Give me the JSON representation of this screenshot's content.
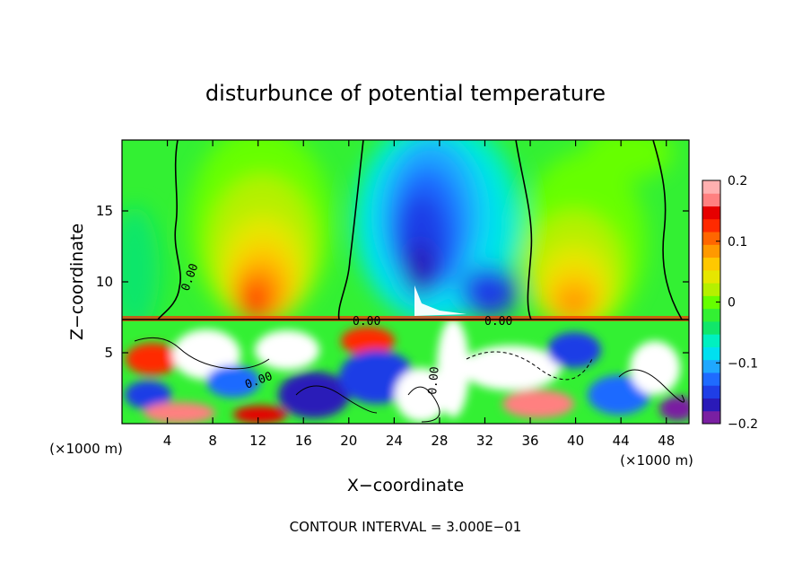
{
  "chart_data": {
    "type": "heatmap",
    "title": "disturbunce of potential temperature",
    "xlabel": "X−coordinate",
    "ylabel": "Z−coordinate",
    "x_unit_left": "(×1000 m)",
    "x_unit_right": "(×1000 m)",
    "xlim": [
      0,
      50
    ],
    "ylim": [
      0,
      20
    ],
    "x_ticks": [
      4,
      8,
      12,
      16,
      20,
      24,
      28,
      32,
      36,
      40,
      44,
      48
    ],
    "x_tick_labels": [
      "4",
      "8",
      "12",
      "16",
      "20",
      "24",
      "28",
      "32",
      "36",
      "40",
      "44",
      "48"
    ],
    "y_ticks": [
      5,
      10,
      15
    ],
    "y_tick_labels": [
      "5",
      "10",
      "15"
    ],
    "contour_labels": [
      "0.00",
      "0.00",
      "0.00",
      "0.00",
      "0.00"
    ],
    "colorbar": {
      "range": [
        -0.2,
        0.2
      ],
      "tick_values": [
        0.2,
        0.1,
        0,
        -0.1,
        -0.2
      ],
      "tick_labels": [
        "0.2",
        "0.1",
        "0",
        "−0.1",
        "−0.2"
      ],
      "colors": [
        "#7a1fa2",
        "#2a1ab8",
        "#1f3ee6",
        "#1f6bff",
        "#1fa8ff",
        "#00e0f0",
        "#00f0c0",
        "#11e66a",
        "#33f033",
        "#66ff00",
        "#b5f000",
        "#e6e600",
        "#ffc800",
        "#ff9900",
        "#ff6600",
        "#ff2a00",
        "#e60000",
        "#ff8080",
        "#ffb0b0"
      ]
    },
    "field_features": [
      {
        "name": "warm plume",
        "x": 12,
        "z": 10.5,
        "value": 0.13
      },
      {
        "name": "cold plume",
        "x": 27,
        "z": 12.5,
        "value": -0.19
      },
      {
        "name": "warm plume",
        "x": 40,
        "z": 10,
        "value": 0.11
      },
      {
        "name": "background upper layer",
        "value": 0.0
      },
      {
        "name": "layer top",
        "z": 7.4
      }
    ],
    "footer": "CONTOUR INTERVAL = 3.000E−01"
  }
}
